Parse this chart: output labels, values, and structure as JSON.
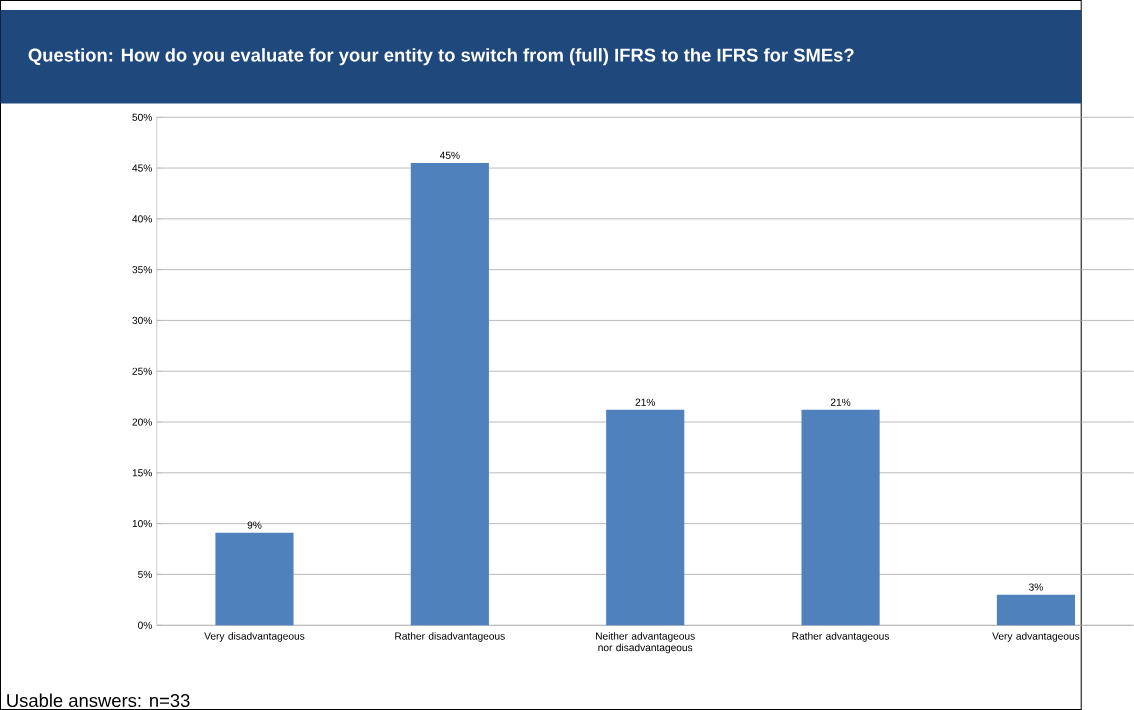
{
  "chart_data": {
    "type": "bar",
    "title": "Question:     How do you evaluate for your entity to switch from (full) IFRS to the IFRS for SMEs?",
    "categories": [
      "Very disadvantageous",
      "Rather disadvantageous",
      "Neither advantageous nor disadvantageous",
      "Rather advantageous",
      "Very advantageous"
    ],
    "values": [
      9.1,
      45.5,
      21.2,
      21.2,
      3.0
    ],
    "value_labels": [
      "9%",
      "45%",
      "21%",
      "21%",
      "3%"
    ],
    "color": "#4f81bd",
    "ylim": [
      0,
      50
    ],
    "yticks": [
      {
        "value": 0,
        "label": "0%"
      },
      {
        "value": 5,
        "label": "5%"
      },
      {
        "value": 10,
        "label": "10%"
      },
      {
        "value": 15,
        "label": "15%"
      },
      {
        "value": 20,
        "label": "20%"
      },
      {
        "value": 25,
        "label": "25%"
      },
      {
        "value": 30,
        "label": "30%"
      },
      {
        "value": 35,
        "label": "35%"
      },
      {
        "value": 40,
        "label": "40%"
      },
      {
        "value": 45,
        "label": "45%"
      },
      {
        "value": 50,
        "label": "50%"
      }
    ],
    "grid": "y",
    "annotations": [
      "Usable answers: n=33"
    ]
  }
}
